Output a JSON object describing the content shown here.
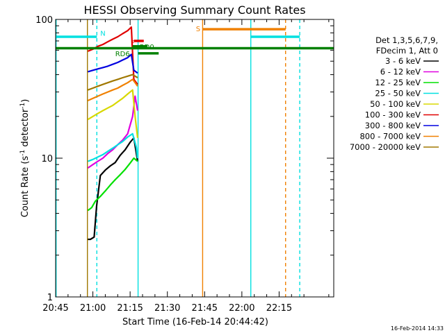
{
  "chart_data": {
    "type": "line",
    "title": "HESSI Observing Summary Count Rates",
    "xlabel": "Start Time (16-Feb-14 20:44:42)",
    "ylabel_parts": [
      "Count Rate (s",
      "-1",
      " detector",
      "-1",
      ")"
    ],
    "ylabel": "Count Rate (s-1 detector-1)",
    "yscale": "log",
    "ylim": [
      1,
      100
    ],
    "yticks": [
      {
        "v": 1,
        "label": "1"
      },
      {
        "v": 10,
        "label": "10"
      },
      {
        "v": 100,
        "label": "100"
      }
    ],
    "xlim_min": [
      0,
      112
    ],
    "xticks": [
      {
        "v": 0,
        "label": "20:45"
      },
      {
        "v": 15,
        "label": "21:00"
      },
      {
        "v": 30,
        "label": "21:15"
      },
      {
        "v": 45,
        "label": "21:30"
      },
      {
        "v": 60,
        "label": "21:45"
      },
      {
        "v": 75,
        "label": "22:00"
      },
      {
        "v": 90,
        "label": "22:15"
      }
    ],
    "legend": {
      "placement": "right",
      "header": [
        "Det 1,3,5,6,7,9,",
        "FDecim 1, Att 0"
      ],
      "entries": [
        {
          "label": "3 - 6 keV",
          "color": "#000000"
        },
        {
          "label": "6 - 12 keV",
          "color": "#e000e0"
        },
        {
          "label": "12 - 25 keV",
          "color": "#00e000"
        },
        {
          "label": "25 - 50 keV",
          "color": "#00e0e0"
        },
        {
          "label": "50 - 100 keV",
          "color": "#d8d800"
        },
        {
          "label": "100 - 300 keV",
          "color": "#e00000"
        },
        {
          "label": "300 - 800 keV",
          "color": "#0000e0"
        },
        {
          "label": "800 - 7000 keV",
          "color": "#f08000"
        },
        {
          "label": "7000 - 20000 keV",
          "color": "#a07800"
        }
      ]
    },
    "series": [
      {
        "name": "3 - 6 keV",
        "color": "#000000",
        "x": [
          13,
          14,
          15.5,
          16.5,
          18,
          20,
          22,
          24,
          26,
          28,
          30,
          31.5,
          33
        ],
        "y": [
          2.6,
          2.6,
          2.7,
          4.5,
          7.5,
          8.2,
          8.8,
          9.3,
          10.5,
          11.5,
          13,
          14,
          9.5
        ]
      },
      {
        "name": "6 - 12 keV",
        "color": "#e000e0",
        "x": [
          13,
          15,
          17,
          19,
          21,
          23,
          25,
          27,
          29,
          31,
          32,
          33
        ],
        "y": [
          8.5,
          9,
          9.5,
          10,
          10.8,
          11.5,
          12.5,
          13.5,
          15,
          20,
          28,
          22
        ]
      },
      {
        "name": "12 - 25 keV",
        "color": "#00e000",
        "x": [
          13,
          14.5,
          16,
          18,
          20,
          22,
          24,
          26,
          28,
          30,
          31.5,
          33
        ],
        "y": [
          4.2,
          4.4,
          4.9,
          5.3,
          5.8,
          6.4,
          7.0,
          7.6,
          8.3,
          9.2,
          10,
          9.5
        ]
      },
      {
        "name": "25 - 50 keV",
        "color": "#00e0e0",
        "x": [
          13,
          15,
          17,
          19,
          21,
          23,
          25,
          27,
          29,
          31,
          32.5,
          33
        ],
        "y": [
          9.5,
          9.8,
          10.2,
          10.6,
          11.2,
          11.8,
          12.5,
          13.2,
          14.2,
          15,
          12,
          10
        ]
      },
      {
        "name": "50 - 100 keV",
        "color": "#d8d800",
        "x": [
          13,
          15,
          17,
          19,
          21,
          23,
          25,
          27,
          29,
          31,
          32,
          33
        ],
        "y": [
          19,
          20,
          21,
          22,
          23,
          24,
          25.5,
          27,
          29,
          31,
          20,
          14
        ]
      },
      {
        "name": "100 - 300 keV",
        "color": "#e00000",
        "x": [
          13,
          15,
          17,
          19,
          21,
          23,
          25,
          27,
          29,
          30.5,
          31.5,
          33
        ],
        "y": [
          59,
          61,
          64,
          66,
          69,
          72,
          75,
          79,
          83,
          88,
          37,
          34
        ]
      },
      {
        "name": "300 - 800 keV",
        "color": "#0000e0",
        "x": [
          13,
          15,
          17,
          19,
          21,
          23,
          25,
          27,
          29,
          30.5,
          31.5,
          33
        ],
        "y": [
          42,
          43,
          44,
          45,
          46,
          47.5,
          49,
          51,
          53,
          56,
          43,
          41
        ]
      },
      {
        "name": "800 - 7000 keV",
        "color": "#f08000",
        "x": [
          13,
          15,
          17,
          19,
          21,
          23,
          25,
          27,
          29,
          31,
          32,
          33
        ],
        "y": [
          26,
          27,
          28,
          29,
          30,
          31,
          32,
          33.5,
          35,
          37,
          35,
          33
        ]
      },
      {
        "name": "7000 - 20000 keV",
        "color": "#a07800",
        "x": [
          13,
          15,
          17,
          19,
          21,
          23,
          25,
          27,
          29,
          31,
          33
        ],
        "y": [
          31,
          32,
          33,
          34,
          35,
          36,
          37,
          38,
          39,
          40,
          38
        ]
      }
    ],
    "vlines": [
      {
        "x": 0.2,
        "color": "#00e0e0",
        "dash": false
      },
      {
        "x": 12.8,
        "color": "#a07800",
        "dash": false
      },
      {
        "x": 16.6,
        "color": "#00e0e0",
        "dash": true
      },
      {
        "x": 33.2,
        "color": "#00e0e0",
        "dash": false
      },
      {
        "x": 59.2,
        "color": "#f08000",
        "dash": false
      },
      {
        "x": 78.6,
        "color": "#00e0e0",
        "dash": false
      },
      {
        "x": 92.6,
        "color": "#f08000",
        "dash": true
      },
      {
        "x": 98.3,
        "color": "#00e0e0",
        "dash": true
      }
    ],
    "flag_bars": [
      {
        "x0": 0.2,
        "x1": 16.6,
        "y": 75,
        "color": "#00e0e0",
        "label": "N",
        "label_x": 18,
        "label_y": 80
      },
      {
        "x0": 78.6,
        "x1": 98.3,
        "y": 75,
        "color": "#00e0e0",
        "label": "",
        "label_x": 0,
        "label_y": 0
      },
      {
        "x0": 59.2,
        "x1": 92.6,
        "y": 85,
        "color": "#f08000",
        "label": "S",
        "label_x": 56.5,
        "label_y": 86
      },
      {
        "x0": 31.5,
        "x1": 35.5,
        "y": 70,
        "color": "#e00000",
        "label": "F",
        "label_x": 30.2,
        "label_y": 68
      },
      {
        "x0": 0,
        "x1": 112,
        "y": 62,
        "color": "#008000",
        "label": "",
        "label_x": 0,
        "label_y": 0
      },
      {
        "x0": 33.2,
        "x1": 41.5,
        "y": 57,
        "color": "#008000",
        "label": "RD6",
        "label_x": 24,
        "label_y": 57
      },
      {
        "x0": 31,
        "x1": 37,
        "y": 64,
        "color": "#008000",
        "label": "RD0",
        "label_x": 33.8,
        "label_y": 64
      }
    ],
    "grid": false
  },
  "timestamp": "16-Feb-2014 14:33"
}
